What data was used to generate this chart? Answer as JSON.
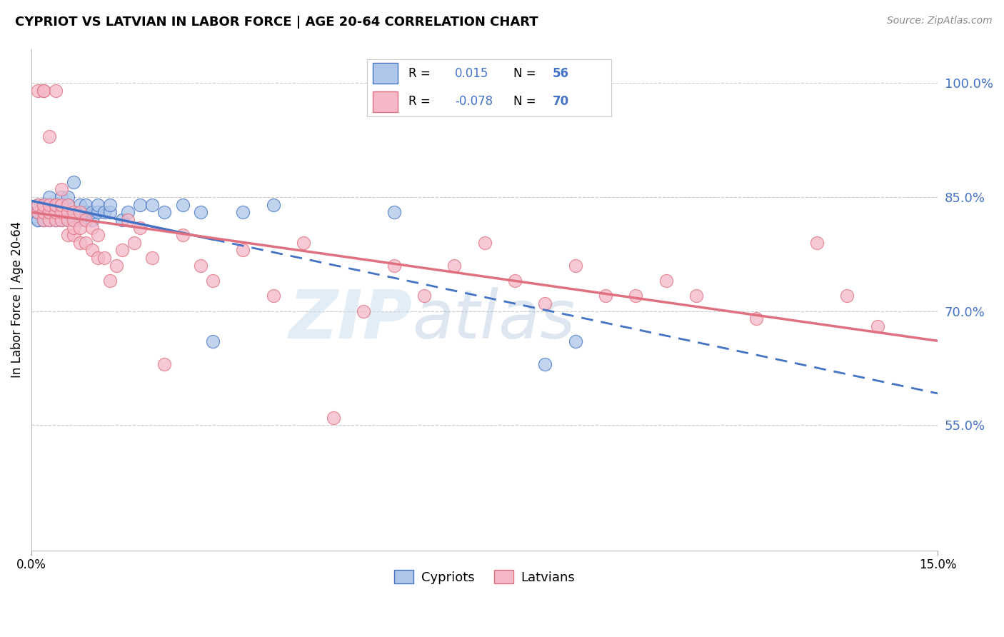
{
  "title": "CYPRIOT VS LATVIAN IN LABOR FORCE | AGE 20-64 CORRELATION CHART",
  "source": "Source: ZipAtlas.com",
  "ylabel": "In Labor Force | Age 20-64",
  "xmin": 0.0,
  "xmax": 0.15,
  "ymin": 0.385,
  "ymax": 1.045,
  "yticks": [
    0.55,
    0.7,
    0.85,
    1.0
  ],
  "ytick_labels": [
    "55.0%",
    "70.0%",
    "85.0%",
    "100.0%"
  ],
  "xtick_labels": [
    "0.0%",
    "15.0%"
  ],
  "legend_r_cypriot": "0.015",
  "legend_n_cypriot": "56",
  "legend_r_latvian": "-0.078",
  "legend_n_latvian": "70",
  "cypriot_face": "#aec6e8",
  "cypriot_edge": "#4472c4",
  "latvian_face": "#f5b8c8",
  "latvian_edge": "#e07080",
  "cypriot_line": "#4472c4",
  "latvian_line": "#e07080",
  "text_blue": "#4472c4",
  "watermark_zip": "ZIP",
  "watermark_atlas": "atlas",
  "cypriot_x": [
    0.001,
    0.001,
    0.001,
    0.001,
    0.002,
    0.002,
    0.002,
    0.002,
    0.002,
    0.003,
    0.003,
    0.003,
    0.003,
    0.003,
    0.003,
    0.004,
    0.004,
    0.004,
    0.004,
    0.005,
    0.005,
    0.005,
    0.005,
    0.005,
    0.006,
    0.006,
    0.006,
    0.006,
    0.007,
    0.007,
    0.007,
    0.008,
    0.008,
    0.008,
    0.009,
    0.009,
    0.01,
    0.01,
    0.011,
    0.011,
    0.012,
    0.013,
    0.013,
    0.015,
    0.016,
    0.018,
    0.02,
    0.022,
    0.025,
    0.028,
    0.03,
    0.035,
    0.04,
    0.06,
    0.085,
    0.09
  ],
  "cypriot_y": [
    0.82,
    0.82,
    0.83,
    0.84,
    0.82,
    0.83,
    0.83,
    0.84,
    0.84,
    0.82,
    0.83,
    0.83,
    0.84,
    0.84,
    0.85,
    0.82,
    0.83,
    0.84,
    0.84,
    0.82,
    0.83,
    0.83,
    0.84,
    0.85,
    0.82,
    0.83,
    0.84,
    0.85,
    0.82,
    0.83,
    0.87,
    0.82,
    0.83,
    0.84,
    0.83,
    0.84,
    0.82,
    0.83,
    0.83,
    0.84,
    0.83,
    0.83,
    0.84,
    0.82,
    0.83,
    0.84,
    0.84,
    0.83,
    0.84,
    0.83,
    0.66,
    0.83,
    0.84,
    0.83,
    0.63,
    0.66
  ],
  "latvian_x": [
    0.001,
    0.001,
    0.001,
    0.002,
    0.002,
    0.002,
    0.002,
    0.002,
    0.003,
    0.003,
    0.003,
    0.003,
    0.004,
    0.004,
    0.004,
    0.004,
    0.004,
    0.005,
    0.005,
    0.005,
    0.005,
    0.006,
    0.006,
    0.006,
    0.006,
    0.007,
    0.007,
    0.007,
    0.007,
    0.008,
    0.008,
    0.008,
    0.009,
    0.009,
    0.01,
    0.01,
    0.011,
    0.011,
    0.012,
    0.013,
    0.014,
    0.015,
    0.016,
    0.017,
    0.018,
    0.02,
    0.022,
    0.025,
    0.028,
    0.03,
    0.035,
    0.04,
    0.045,
    0.05,
    0.055,
    0.06,
    0.065,
    0.07,
    0.075,
    0.08,
    0.085,
    0.09,
    0.095,
    0.1,
    0.105,
    0.11,
    0.12,
    0.13,
    0.135,
    0.14
  ],
  "latvian_y": [
    0.83,
    0.84,
    0.99,
    0.82,
    0.83,
    0.84,
    0.99,
    0.99,
    0.82,
    0.83,
    0.84,
    0.93,
    0.82,
    0.83,
    0.84,
    0.84,
    0.99,
    0.82,
    0.83,
    0.84,
    0.86,
    0.8,
    0.82,
    0.83,
    0.84,
    0.8,
    0.81,
    0.82,
    0.83,
    0.79,
    0.81,
    0.83,
    0.79,
    0.82,
    0.78,
    0.81,
    0.77,
    0.8,
    0.77,
    0.74,
    0.76,
    0.78,
    0.82,
    0.79,
    0.81,
    0.77,
    0.63,
    0.8,
    0.76,
    0.74,
    0.78,
    0.72,
    0.79,
    0.56,
    0.7,
    0.76,
    0.72,
    0.76,
    0.79,
    0.74,
    0.71,
    0.76,
    0.72,
    0.72,
    0.74,
    0.72,
    0.69,
    0.79,
    0.72,
    0.68
  ]
}
